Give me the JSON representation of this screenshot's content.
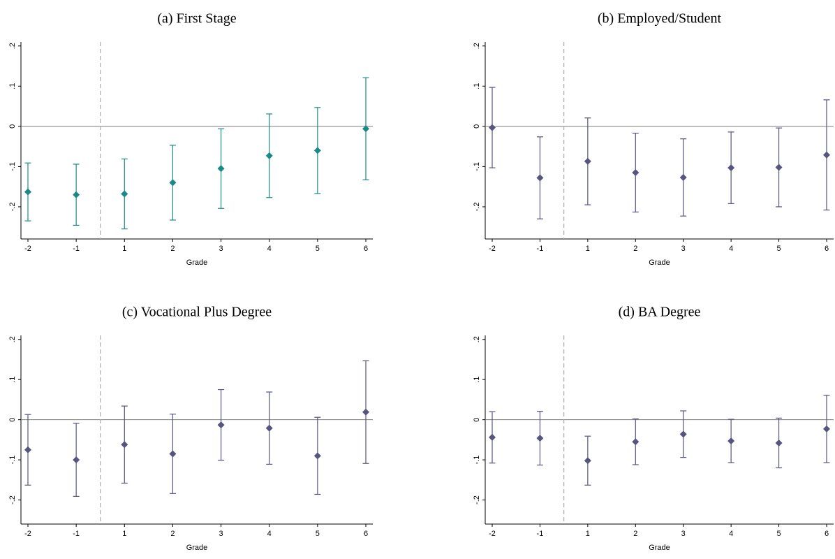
{
  "chart_data": [
    {
      "type": "errorbar",
      "title": "(a) First Stage",
      "x_label": "Grade",
      "categories": [
        "-2",
        "-1",
        "1",
        "2",
        "3",
        "4",
        "5",
        "6"
      ],
      "values": [
        -0.163,
        -0.17,
        -0.168,
        -0.14,
        -0.105,
        -0.073,
        -0.06,
        -0.006
      ],
      "errors": [
        0.072,
        0.076,
        0.087,
        0.093,
        0.099,
        0.104,
        0.107,
        0.127
      ],
      "color": "#1a8a88",
      "ylim": [
        -0.28,
        0.21
      ],
      "yticks": [
        {
          "value": -0.2,
          "label": "-.2"
        },
        {
          "value": -0.1,
          "label": "-.1"
        },
        0,
        {
          "value": 0.1,
          "label": ".1"
        },
        {
          "value": 0.2,
          "label": ".2"
        }
      ],
      "reference_line": 0
    },
    {
      "type": "errorbar",
      "title": "(b) Employed/Student",
      "x_label": "Grade",
      "categories": [
        "-2",
        "-1",
        "1",
        "2",
        "3",
        "4",
        "5",
        "6"
      ],
      "values": [
        -0.003,
        -0.128,
        -0.087,
        -0.115,
        -0.127,
        -0.103,
        -0.102,
        -0.071
      ],
      "errors": [
        0.1,
        0.102,
        0.108,
        0.098,
        0.096,
        0.089,
        0.098,
        0.137
      ],
      "color": "#55557f",
      "ylim": [
        -0.28,
        0.21
      ],
      "yticks": [
        {
          "value": -0.2,
          "label": "-.2"
        },
        {
          "value": -0.1,
          "label": "-.1"
        },
        0,
        {
          "value": 0.1,
          "label": ".1"
        },
        {
          "value": 0.2,
          "label": ".2"
        }
      ],
      "reference_line": 0
    },
    {
      "type": "errorbar",
      "title": "(c) Vocational Plus Degree",
      "x_label": "Grade",
      "categories": [
        "-2",
        "-1",
        "1",
        "2",
        "3",
        "4",
        "5",
        "6"
      ],
      "values": [
        -0.075,
        -0.1,
        -0.062,
        -0.085,
        -0.013,
        -0.021,
        -0.09,
        0.019
      ],
      "errors": [
        0.088,
        0.091,
        0.096,
        0.099,
        0.088,
        0.09,
        0.096,
        0.128
      ],
      "color": "#55557f",
      "ylim": [
        -0.26,
        0.21
      ],
      "yticks": [
        {
          "value": -0.2,
          "label": "-.2"
        },
        {
          "value": -0.1,
          "label": "-.1"
        },
        0,
        {
          "value": 0.1,
          "label": ".1"
        },
        {
          "value": 0.2,
          "label": ".2"
        }
      ],
      "reference_line": 0
    },
    {
      "type": "errorbar",
      "title": "(d) BA Degree",
      "x_label": "Grade",
      "categories": [
        "-2",
        "-1",
        "1",
        "2",
        "3",
        "4",
        "5",
        "6"
      ],
      "values": [
        -0.044,
        -0.046,
        -0.102,
        -0.055,
        -0.036,
        -0.053,
        -0.058,
        -0.023
      ],
      "errors": [
        0.064,
        0.067,
        0.061,
        0.057,
        0.058,
        0.054,
        0.062,
        0.084
      ],
      "color": "#55557f",
      "ylim": [
        -0.26,
        0.21
      ],
      "yticks": [
        {
          "value": -0.2,
          "label": "-.2"
        },
        {
          "value": -0.1,
          "label": "-.1"
        },
        0,
        {
          "value": 0.1,
          "label": ".1"
        },
        {
          "value": 0.2,
          "label": ".2"
        }
      ],
      "reference_line": 0
    }
  ]
}
